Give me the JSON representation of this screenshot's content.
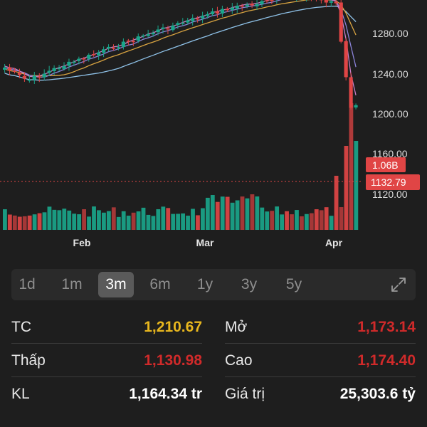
{
  "chart_data": {
    "type": "candlestick",
    "x_ticks": [
      "Feb",
      "Mar",
      "Apr"
    ],
    "y_ticks": [
      "1280.00",
      "1240.00",
      "1200.00",
      "1160.00",
      "1120.00"
    ],
    "price_tags": [
      {
        "label": "1.06B",
        "color": "#e04545"
      },
      {
        "label": "1132.79",
        "color": "#e04545"
      }
    ],
    "colors": {
      "up": "#1aa58a",
      "down": "#e04545",
      "ma_orange": "#d9a441",
      "ma_blue": "#8fc2e8",
      "ma_pink": "#c780c7",
      "ma_purple": "#8b83d8"
    }
  },
  "range": {
    "options": [
      "1d",
      "1m",
      "3m",
      "6m",
      "1y",
      "3y",
      "5y"
    ],
    "selected": "3m",
    "expand_icon": "expand-icon"
  },
  "stats": {
    "tc": {
      "label": "TC",
      "value": "1,210.67",
      "color": "#e8b71e"
    },
    "mo": {
      "label": "Mở",
      "value": "1,173.14",
      "color": "#d02a2a"
    },
    "thap": {
      "label": "Thấp",
      "value": "1,130.98",
      "color": "#d02a2a"
    },
    "cao": {
      "label": "Cao",
      "value": "1,174.40",
      "color": "#d02a2a"
    },
    "kl": {
      "label": "KL",
      "value": "1,164.34 tr",
      "color": "#ffffff"
    },
    "giatri": {
      "label": "Giá trị",
      "value": "25,303.6 tỷ",
      "color": "#ffffff"
    }
  }
}
